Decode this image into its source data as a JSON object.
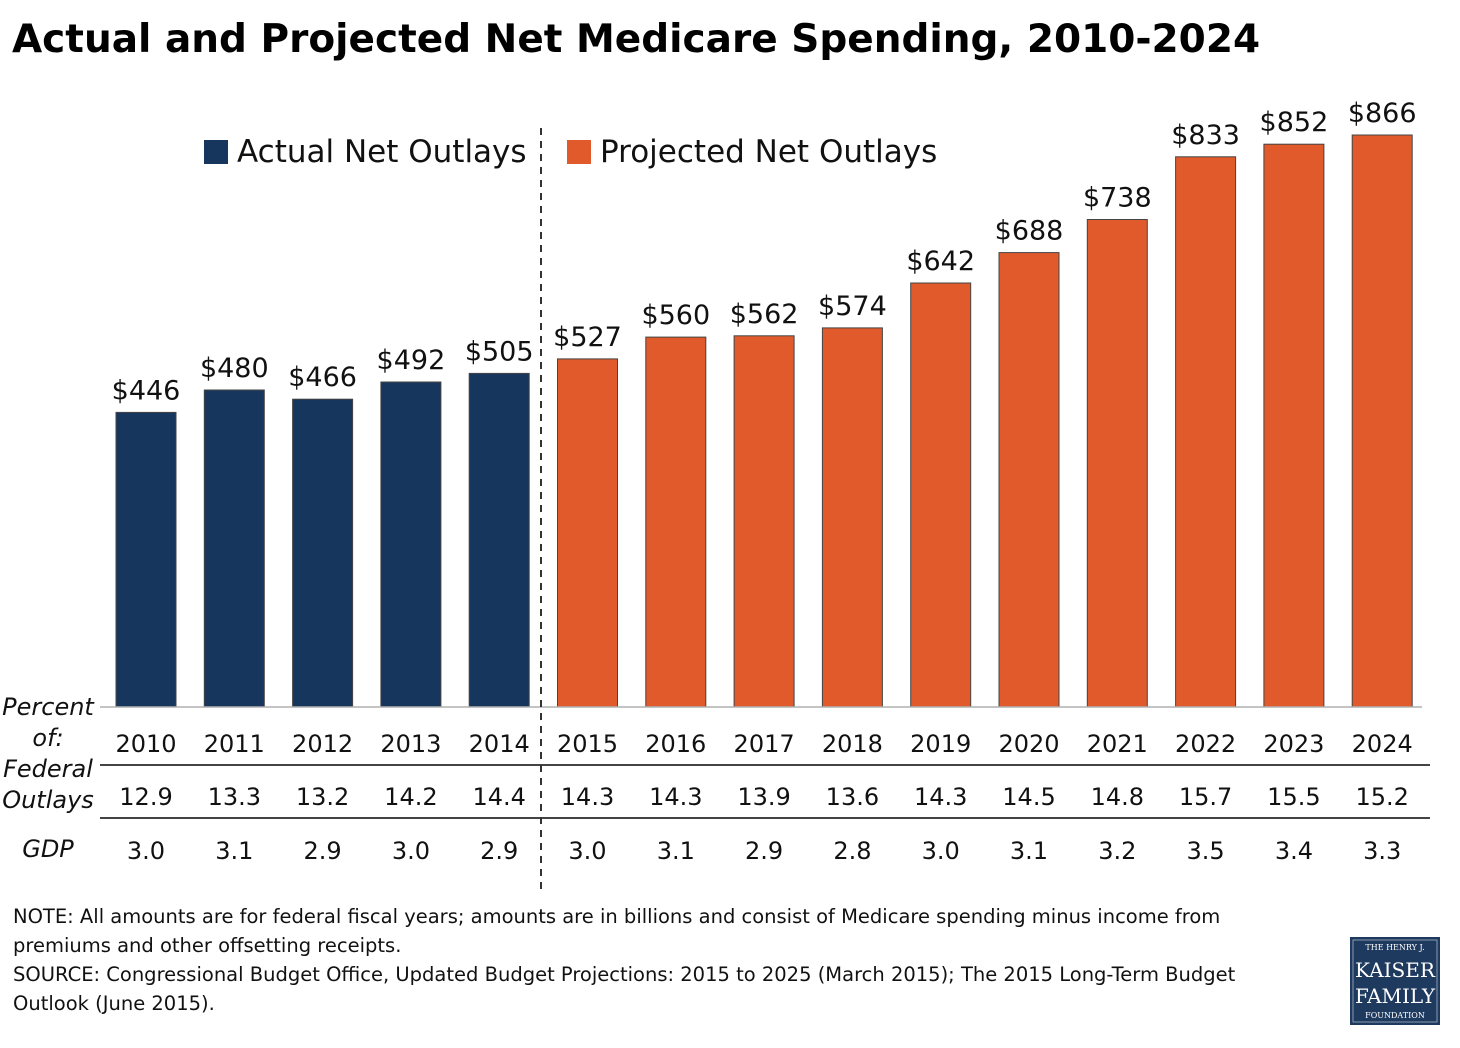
{
  "title": "Actual and Projected Net Medicare Spending, 2010-2024",
  "chart_data": {
    "type": "bar",
    "title": "Actual and Projected Net Medicare Spending, 2010-2024",
    "categories": [
      "2010",
      "2011",
      "2012",
      "2013",
      "2014",
      "2015",
      "2016",
      "2017",
      "2018",
      "2019",
      "2020",
      "2021",
      "2022",
      "2023",
      "2024"
    ],
    "value_labels": [
      "$446",
      "$480",
      "$466",
      "$492",
      "$505",
      "$527",
      "$560",
      "$562",
      "$574",
      "$642",
      "$688",
      "$738",
      "$833",
      "$852",
      "$866"
    ],
    "series": [
      {
        "name": "Actual Net Outlays",
        "color": "#17365d",
        "values": [
          446,
          480,
          466,
          492,
          505,
          null,
          null,
          null,
          null,
          null,
          null,
          null,
          null,
          null,
          null
        ]
      },
      {
        "name": "Projected Net Outlays",
        "color": "#e05a2b",
        "values": [
          null,
          null,
          null,
          null,
          null,
          527,
          560,
          562,
          574,
          642,
          688,
          738,
          833,
          852,
          866
        ]
      }
    ],
    "ylim": [
      0,
      866
    ],
    "grid": false,
    "legend_position": "top",
    "table": {
      "header": [
        "Percent",
        "of:",
        "Federal",
        "Outlays"
      ],
      "rows": [
        {
          "label": "Federal Outlays",
          "values": [
            "12.9",
            "13.3",
            "13.2",
            "14.2",
            "14.4",
            "14.3",
            "14.3",
            "13.9",
            "13.6",
            "14.3",
            "14.5",
            "14.8",
            "15.7",
            "15.5",
            "15.2"
          ]
        },
        {
          "label": "GDP",
          "values": [
            "3.0",
            "3.1",
            "2.9",
            "3.0",
            "2.9",
            "3.0",
            "3.1",
            "2.9",
            "2.8",
            "3.0",
            "3.1",
            "3.2",
            "3.5",
            "3.4",
            "3.3"
          ]
        }
      ]
    }
  },
  "notes": [
    "NOTE: All amounts are for federal fiscal years; amounts are in billions and consist of Medicare spending minus income from",
    "premiums and other offsetting receipts.",
    "SOURCE: Congressional Budget Office, Updated Budget Projections: 2015 to 2025 (March 2015); The 2015 Long-Term Budget",
    "Outlook (June 2015)."
  ],
  "logo": {
    "lines": [
      "THE HENRY J.",
      "KAISER",
      "FAMILY",
      "FOUNDATION"
    ],
    "color": "#1f3a5f"
  }
}
